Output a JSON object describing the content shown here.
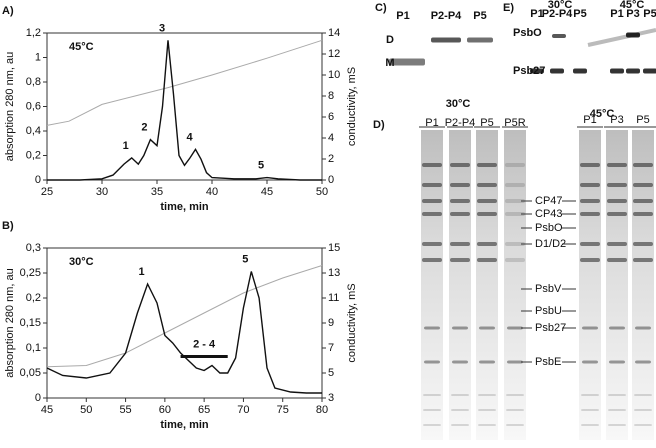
{
  "chart_data": [
    {
      "type": "line",
      "panel": "A)",
      "title": "45°C",
      "xlabel": "time, min",
      "ylabel": "absorption 280 nm, au",
      "y2label": "conductivity, mS",
      "xlim": [
        25,
        50
      ],
      "xticks": [
        25,
        30,
        35,
        40,
        45,
        50
      ],
      "ylim": [
        0,
        1.2
      ],
      "yticks": [
        0,
        {
          "value": 0.2,
          "label": "0,2"
        },
        {
          "value": 0.4,
          "label": "0,4"
        },
        {
          "value": 0.6,
          "label": "0,6"
        },
        {
          "value": 0.8,
          "label": "0,8"
        },
        1,
        {
          "value": 1.2,
          "label": "1,2"
        }
      ],
      "y2lim": [
        0,
        14
      ],
      "y2ticks": [
        0,
        2,
        4,
        6,
        8,
        10,
        12,
        14
      ],
      "series": [
        {
          "color": "#aaaaaa",
          "axis": "y2",
          "x": [
            25,
            27,
            30,
            33,
            36,
            40,
            45,
            50
          ],
          "values": [
            5.2,
            5.6,
            7.2,
            8.0,
            8.8,
            10,
            11.6,
            13.3
          ]
        },
        {
          "color": "#111111",
          "x": [
            25,
            28,
            30,
            31,
            32,
            32.7,
            33.3,
            33.8,
            34.4,
            35,
            35.5,
            36,
            36.5,
            37,
            37.5,
            38,
            38.5,
            39,
            39.5,
            40,
            42,
            44,
            45,
            46,
            48,
            50
          ],
          "values": [
            0,
            0,
            0.01,
            0.04,
            0.13,
            0.18,
            0.13,
            0.2,
            0.33,
            0.28,
            0.6,
            1.14,
            0.7,
            0.2,
            0.12,
            0.18,
            0.25,
            0.17,
            0.06,
            0.02,
            0.01,
            0.01,
            0.02,
            0.01,
            0,
            0
          ]
        }
      ],
      "annotations": [
        {
          "text": "1",
          "x": 32.7,
          "y": 0.18
        },
        {
          "text": "2",
          "x": 34.4,
          "y": 0.33
        },
        {
          "text": "3",
          "x": 36,
          "y": 1.14
        },
        {
          "text": "4",
          "x": 38.5,
          "y": 0.25
        },
        {
          "text": "5",
          "x": 45,
          "y": 0.02
        }
      ]
    },
    {
      "type": "line",
      "panel": "B)",
      "title": "30°C",
      "xlabel": "time, min",
      "ylabel": "absorption 280 nm, au",
      "y2label": "conductivity, mS",
      "xlim": [
        45,
        80
      ],
      "xticks": [
        45,
        50,
        55,
        60,
        65,
        70,
        75,
        80
      ],
      "ylim": [
        0,
        0.3
      ],
      "yticks": [
        0,
        {
          "value": 0.05,
          "label": "0,05"
        },
        {
          "value": 0.1,
          "label": "0,1"
        },
        {
          "value": 0.15,
          "label": "0,15"
        },
        {
          "value": 0.2,
          "label": "0,2"
        },
        {
          "value": 0.25,
          "label": "0,25"
        },
        {
          "value": 0.3,
          "label": "0,3"
        }
      ],
      "y2lim": [
        3,
        15
      ],
      "y2ticks": [
        3,
        5,
        7,
        9,
        11,
        13,
        15
      ],
      "series": [
        {
          "color": "#aaaaaa",
          "axis": "y2",
          "x": [
            45,
            50,
            55,
            60,
            65,
            70,
            75,
            80
          ],
          "values": [
            5.5,
            5.6,
            6.6,
            8.2,
            9.8,
            11.4,
            12.6,
            13.6
          ]
        },
        {
          "color": "#111111",
          "x": [
            45,
            47,
            50,
            53,
            55,
            56.5,
            57.8,
            59,
            60,
            61,
            62,
            63,
            64,
            65,
            66,
            67,
            68,
            69,
            70,
            71,
            72,
            73,
            74,
            76,
            78,
            80
          ],
          "values": [
            0.06,
            0.045,
            0.04,
            0.05,
            0.09,
            0.17,
            0.228,
            0.19,
            0.125,
            0.11,
            0.09,
            0.075,
            0.06,
            0.055,
            0.065,
            0.05,
            0.05,
            0.08,
            0.18,
            0.253,
            0.2,
            0.06,
            0.02,
            0.012,
            0.01,
            0.01
          ]
        }
      ],
      "annotations": [
        {
          "text": "1",
          "x": 57.8,
          "y": 0.228
        },
        {
          "text": "5",
          "x": 71,
          "y": 0.253
        },
        {
          "text": "2 - 4",
          "x": [
            62,
            68
          ],
          "y": 0.083
        }
      ]
    }
  ],
  "gels": {
    "c": {
      "panel": "C)",
      "lanes": [
        "P1",
        "P2-P4",
        "P5"
      ],
      "bands": [
        "D",
        "M"
      ]
    },
    "e": {
      "panel": "E)",
      "groups": [
        {
          "title": "30°C",
          "lanes": [
            "P1",
            "P2-P4",
            "P5"
          ]
        },
        {
          "title": "45°C",
          "lanes": [
            "P1",
            "P3",
            "P5"
          ]
        }
      ],
      "bands": [
        "PsbO",
        "Psb27"
      ]
    },
    "d": {
      "panel": "D)",
      "groups": [
        {
          "title": "30°C",
          "lanes": [
            "P1",
            "P2-P4",
            "P5",
            "P5R"
          ]
        },
        {
          "title": "45°C",
          "lanes": [
            "P1",
            "P3",
            "P5"
          ]
        }
      ],
      "bands": [
        "CP47",
        "CP43",
        "PsbO",
        "D1/D2",
        "PsbV",
        "PsbU",
        "Psb27",
        "PsbE"
      ]
    }
  }
}
